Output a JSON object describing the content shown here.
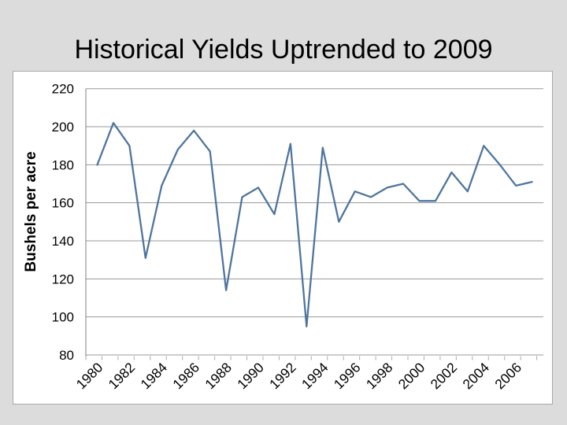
{
  "slide": {
    "title": "Historical Yields Uptrended to 2009"
  },
  "chart_data": {
    "type": "line",
    "title": "Historical Yields Uptrended to 2009",
    "ylabel": "Bushels per acre",
    "xlabel": "",
    "x": [
      1980,
      1981,
      1982,
      1983,
      1984,
      1985,
      1986,
      1987,
      1988,
      1989,
      1990,
      1991,
      1992,
      1993,
      1994,
      1995,
      1996,
      1997,
      1998,
      1999,
      2000,
      2001,
      2002,
      2003,
      2004,
      2005,
      2006,
      2007
    ],
    "values": [
      180,
      202,
      190,
      131,
      169,
      188,
      198,
      187,
      114,
      163,
      168,
      154,
      191,
      95,
      189,
      150,
      166,
      163,
      168,
      170,
      161,
      161,
      176,
      166,
      190,
      180,
      169,
      171
    ],
    "y_ticks": [
      80,
      100,
      120,
      140,
      160,
      180,
      200,
      220
    ],
    "x_tick_labels": [
      "1980",
      "1982",
      "1984",
      "1986",
      "1988",
      "1990",
      "1992",
      "1994",
      "1996",
      "1998",
      "2000",
      "2002",
      "2004",
      "2006"
    ],
    "ylim": [
      80,
      220
    ],
    "grid": true,
    "legend": false,
    "line_color": "#4F759E"
  },
  "colors": {
    "background": "#DCDCDC",
    "panel": "#FFFFFF",
    "panel_border": "#A8A8A8",
    "gridline": "#999999",
    "axis": "#808080",
    "tick": "#A9A9A9",
    "text": "#000000"
  }
}
